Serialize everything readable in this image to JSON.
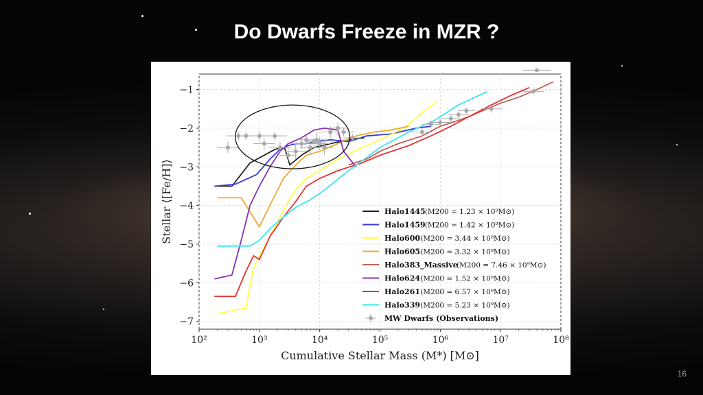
{
  "slide": {
    "title": "Do Dwarfs Freeze in MZR ?",
    "page_number": "16"
  },
  "chart_data": {
    "type": "line",
    "xlabel": "Cumulative Stellar Mass (M*) [M⊙]",
    "ylabel": "Stellar ⟨[Fe/H]⟩",
    "xscale": "log",
    "xlim": [
      100,
      100000000
    ],
    "ylim": [
      -7.2,
      -0.6
    ],
    "x_ticks": [
      {
        "v": 100,
        "label": "10²"
      },
      {
        "v": 1000,
        "label": "10³"
      },
      {
        "v": 10000,
        "label": "10⁴"
      },
      {
        "v": 100000,
        "label": "10⁵"
      },
      {
        "v": 1000000,
        "label": "10⁶"
      },
      {
        "v": 10000000,
        "label": "10⁷"
      },
      {
        "v": 100000000,
        "label": "10⁸"
      }
    ],
    "y_ticks": [
      {
        "v": -1,
        "label": "−1"
      },
      {
        "v": -2,
        "label": "−2"
      },
      {
        "v": -3,
        "label": "−3"
      },
      {
        "v": -4,
        "label": "−4"
      },
      {
        "v": -5,
        "label": "−5"
      },
      {
        "v": -6,
        "label": "−6"
      },
      {
        "v": -7,
        "label": "−7"
      }
    ],
    "grid": true,
    "legend_position": "lower-right",
    "series": [
      {
        "name": "Halo1445",
        "mass_note": "(M200 = 1.23 × 10⁹M⊙)",
        "color": "#222222",
        "x": [
          180,
          350,
          700,
          1200,
          1800,
          2600,
          3200,
          5000,
          8000,
          15000,
          30000,
          55000
        ],
        "y": [
          -3.5,
          -3.5,
          -2.9,
          -2.7,
          -2.55,
          -2.5,
          -2.95,
          -2.7,
          -2.5,
          -2.4,
          -2.3,
          -2.25
        ]
      },
      {
        "name": "Halo1459",
        "mass_note": "(M200 = 1.42 × 10⁹M⊙)",
        "color": "#3a3adb",
        "x": [
          180,
          400,
          900,
          1500,
          2200,
          3000,
          4000,
          6000,
          9000,
          15000,
          30000,
          60000,
          150000,
          400000,
          700000
        ],
        "y": [
          -3.5,
          -3.45,
          -3.2,
          -2.8,
          -2.55,
          -2.45,
          -2.4,
          -2.4,
          -2.35,
          -2.3,
          -2.35,
          -2.2,
          -2.15,
          -2.0,
          -1.95
        ]
      },
      {
        "name": "Halo600",
        "mass_note": "(M200 = 3.44 × 10⁹M⊙)",
        "color": "#ffff44",
        "x": [
          200,
          600,
          800,
          1500,
          2200,
          3000,
          4000,
          6000,
          10000,
          20000,
          50000,
          100000,
          250000,
          500000,
          900000
        ],
        "y": [
          -6.8,
          -6.65,
          -5.6,
          -4.8,
          -4.3,
          -3.9,
          -3.6,
          -3.3,
          -3.1,
          -2.8,
          -2.5,
          -2.3,
          -2.0,
          -1.6,
          -1.3
        ]
      },
      {
        "name": "Halo605",
        "mass_note": "(M200 = 3.32 × 10⁹M⊙)",
        "color": "#f0a830",
        "x": [
          200,
          500,
          1000,
          1600,
          2500,
          4000,
          6000,
          10000,
          20000,
          40000,
          80000,
          150000,
          300000
        ],
        "y": [
          -3.8,
          -3.8,
          -4.55,
          -3.9,
          -3.3,
          -2.95,
          -2.7,
          -2.6,
          -2.4,
          -2.2,
          -2.1,
          -2.05,
          -1.95
        ]
      },
      {
        "name": "Halo383_Massive",
        "mass_note": "(M200 = 7.46 × 10⁹M⊙)",
        "color": "#c0605a",
        "x": [
          30000,
          60000,
          100000,
          200000,
          500000,
          1000000,
          2000000,
          3000000,
          6000000,
          10000000,
          20000000,
          40000000,
          75000000
        ],
        "y": [
          -2.95,
          -2.8,
          -2.6,
          -2.4,
          -2.2,
          -1.95,
          -1.8,
          -1.7,
          -1.5,
          -1.35,
          -1.2,
          -1.0,
          -0.8
        ]
      },
      {
        "name": "Halo624",
        "mass_note": "(M200 = 1.52 × 10⁹M⊙)",
        "color": "#8a2fb5",
        "x": [
          180,
          350,
          500,
          700,
          1000,
          1500,
          2200,
          3000,
          5000,
          8000,
          12000,
          20000,
          25000,
          40000
        ],
        "y": [
          -5.9,
          -5.8,
          -4.9,
          -4.0,
          -3.5,
          -3.0,
          -2.6,
          -2.4,
          -2.25,
          -2.05,
          -2.0,
          -2.05,
          -2.6,
          -3.0
        ]
      },
      {
        "name": "Halo261",
        "mass_note": "(M200 = 6.57 × 10⁹M⊙)",
        "color": "#e83030",
        "x": [
          180,
          400,
          600,
          800,
          1000,
          1500,
          2500,
          4000,
          6000,
          10000,
          20000,
          50000,
          100000,
          300000,
          700000,
          1500000,
          3000000,
          7000000,
          15000000,
          30000000
        ],
        "y": [
          -6.35,
          -6.35,
          -5.7,
          -5.3,
          -5.4,
          -4.8,
          -4.3,
          -3.9,
          -3.5,
          -3.3,
          -3.1,
          -2.9,
          -2.7,
          -2.45,
          -2.2,
          -1.95,
          -1.7,
          -1.4,
          -1.15,
          -0.95
        ]
      },
      {
        "name": "Halo339",
        "mass_note": "(M200 = 5.23 × 10⁹M⊙)",
        "color": "#38e8f0",
        "x": [
          200,
          700,
          1000,
          1500,
          2500,
          4000,
          7000,
          12000,
          25000,
          50000,
          100000,
          300000,
          800000,
          2000000,
          6000000
        ],
        "y": [
          -5.05,
          -5.05,
          -4.9,
          -4.6,
          -4.3,
          -4.05,
          -3.85,
          -3.6,
          -3.2,
          -2.85,
          -2.5,
          -2.1,
          -1.8,
          -1.4,
          -1.05
        ]
      }
    ],
    "observations": {
      "name": "MW Dwarfs (Observations)",
      "color": "#aaaaaa",
      "x": [
        300,
        450,
        600,
        1000,
        1200,
        1800,
        2200,
        3000,
        4000,
        5000,
        6000,
        7000,
        8000,
        9000,
        10000,
        12000,
        15000,
        20000,
        25000,
        35000,
        500000,
        700000,
        1000000,
        1500000,
        2000000,
        2700000,
        7000000,
        35000000,
        40000000
      ],
      "y": [
        -2.5,
        -2.2,
        -2.2,
        -2.2,
        -2.4,
        -2.2,
        -2.5,
        -2.7,
        -2.6,
        -2.4,
        -2.3,
        -2.5,
        -2.35,
        -2.3,
        -2.4,
        -2.5,
        -2.1,
        -2.0,
        -2.1,
        -2.25,
        -2.1,
        -1.9,
        -1.85,
        -1.75,
        -1.65,
        -1.55,
        -1.5,
        -1.05,
        -0.5
      ],
      "xerr_factor": [
        1.5,
        1.6,
        1.4,
        1.5,
        1.5,
        1.6,
        1.5,
        1.4,
        1.5,
        1.5,
        1.4,
        1.5,
        1.4,
        1.5,
        1.5,
        1.4,
        1.5,
        1.4,
        1.5,
        1.4,
        1.5,
        1.4,
        1.5,
        1.4,
        1.5,
        1.4,
        1.5,
        1.5,
        1.7
      ],
      "yerr": [
        0.15,
        0.12,
        0.1,
        0.12,
        0.15,
        0.1,
        0.15,
        0.2,
        0.2,
        0.15,
        0.12,
        0.2,
        0.12,
        0.2,
        0.15,
        0.2,
        0.15,
        0.15,
        0.12,
        0.1,
        0.1,
        0.1,
        0.08,
        0.1,
        0.08,
        0.08,
        0.1,
        0.08,
        0.05
      ]
    },
    "annotation": {
      "shape": "ellipse",
      "center": [
        3500,
        -2.4
      ],
      "x_span_decades": [
        2.6,
        4.5
      ],
      "y_span": [
        -1.4,
        -3.05
      ]
    }
  }
}
